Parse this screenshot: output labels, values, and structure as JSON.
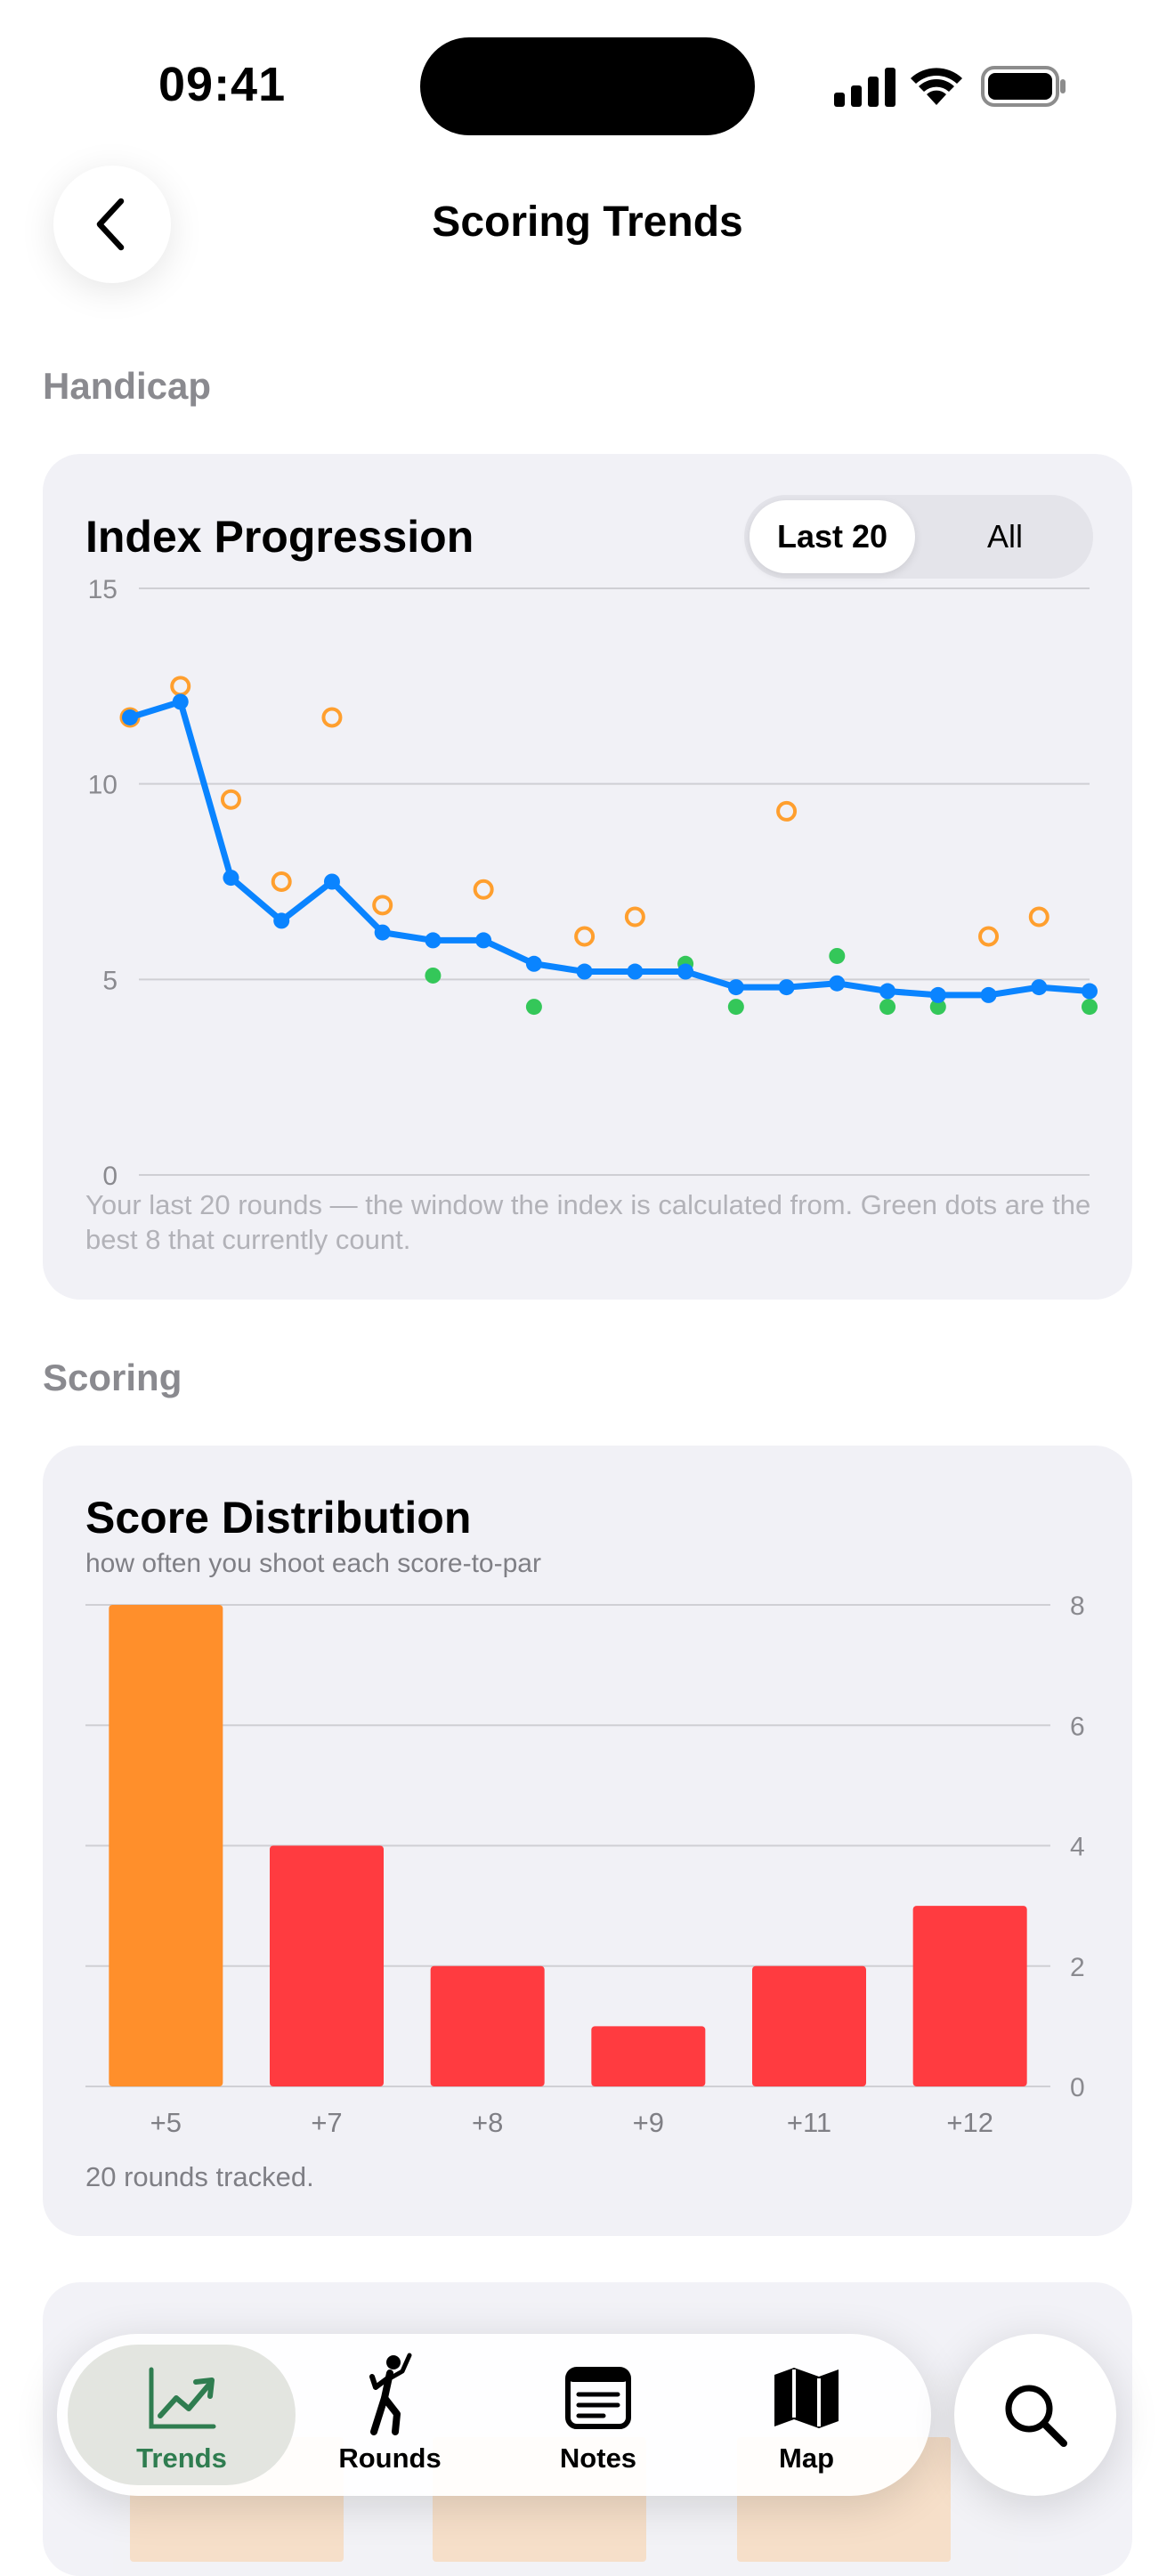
{
  "status_bar": {
    "time": "09:41"
  },
  "nav": {
    "title": "Scoring Trends"
  },
  "sections": {
    "handicap": "Handicap",
    "scoring": "Scoring"
  },
  "index_card": {
    "title": "Index Progression",
    "segments": [
      "Last 20",
      "All"
    ],
    "selected_segment": "Last 20",
    "footnote": "Your last 20 rounds — the window the index is calculated from. Green dots are the best 8 that currently count."
  },
  "score_card": {
    "title": "Score Distribution",
    "subtitle": "how often you shoot each score-to-par",
    "footnote": "20 rounds tracked."
  },
  "tabs": [
    {
      "label": "Trends",
      "icon": "chart-trend-icon",
      "active": true
    },
    {
      "label": "Rounds",
      "icon": "golfer-icon",
      "active": false
    },
    {
      "label": "Notes",
      "icon": "notes-icon",
      "active": false
    },
    {
      "label": "Map",
      "icon": "map-icon",
      "active": false
    }
  ],
  "colors": {
    "index_line": "#0a84ff",
    "round_ring": "#ff9f2e",
    "best_round": "#34c759",
    "bar_best": "#ff8f2b",
    "bar_other": "#ff3b40",
    "active_tab": "#2f7d50"
  },
  "chart_data": [
    {
      "type": "line",
      "title": "Index Progression",
      "x": [
        1,
        2,
        3,
        4,
        5,
        6,
        7,
        8,
        9,
        10,
        11,
        12,
        13,
        14,
        15,
        16,
        17,
        18,
        19,
        20
      ],
      "ylim": [
        0,
        15
      ],
      "yticks": [
        0,
        5,
        10,
        15
      ],
      "grid": true,
      "series": [
        {
          "values": [
            11.7,
            12.1,
            7.6,
            6.5,
            7.5,
            6.2,
            6.0,
            6.0,
            5.4,
            5.2,
            5.2,
            5.2,
            4.8,
            4.8,
            4.9,
            4.7,
            4.6,
            4.6,
            4.8,
            4.7
          ]
        }
      ],
      "round_differentials": [
        11.7,
        12.5,
        9.6,
        7.5,
        11.7,
        6.9,
        5.1,
        7.3,
        4.3,
        6.1,
        6.6,
        5.4,
        4.3,
        9.3,
        5.6,
        4.3,
        4.3,
        6.1,
        6.6,
        4.3
      ],
      "best_8_counting": [
        7,
        9,
        12,
        13,
        15,
        16,
        17,
        20
      ]
    },
    {
      "type": "bar",
      "title": "Score Distribution",
      "categories": [
        "+5",
        "+7",
        "+8",
        "+9",
        "+11",
        "+12"
      ],
      "values": [
        8,
        4,
        2,
        1,
        2,
        3
      ],
      "ylim": [
        0,
        8
      ],
      "yticks": [
        0,
        2,
        4,
        6,
        8
      ],
      "ytick_labels_shown": [
        "0",
        "2",
        "4",
        "6",
        "8"
      ],
      "grid": true
    }
  ]
}
